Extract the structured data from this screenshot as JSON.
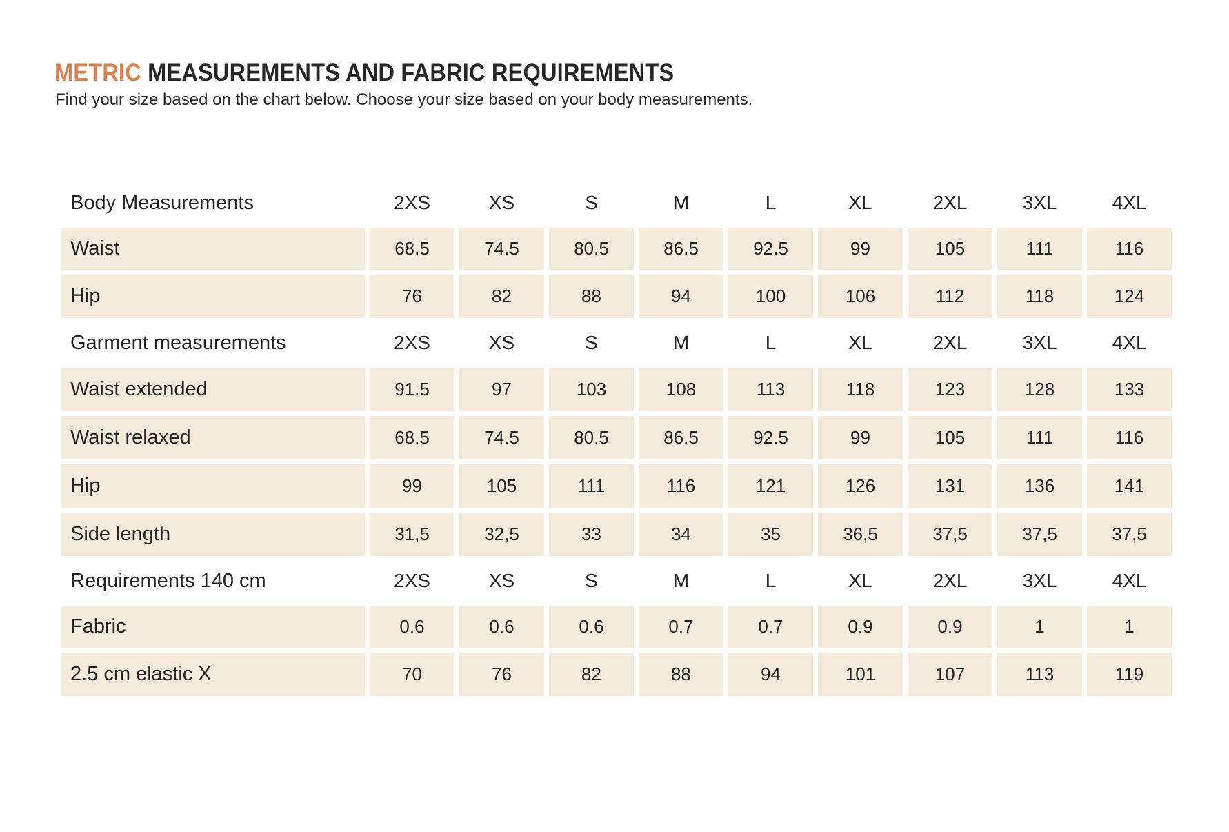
{
  "header": {
    "title_accent": "METRIC",
    "title_rest": "MEASUREMENTS AND FABRIC REQUIREMENTS",
    "subtitle": "Find your size based on the chart below. Choose your size based on your body measurements."
  },
  "sections": [
    {
      "title": "Body Measurements",
      "sizes": [
        "2XS",
        "XS",
        "S",
        "M",
        "L",
        "XL",
        "2XL",
        "3XL",
        "4XL"
      ],
      "rows": [
        {
          "label": "Waist",
          "values": [
            "68.5",
            "74.5",
            "80.5",
            "86.5",
            "92.5",
            "99",
            "105",
            "111",
            "116"
          ]
        },
        {
          "label": "Hip",
          "values": [
            "76",
            "82",
            "88",
            "94",
            "100",
            "106",
            "112",
            "118",
            "124"
          ]
        }
      ]
    },
    {
      "title": "Garment measurements",
      "sizes": [
        "2XS",
        "XS",
        "S",
        "M",
        "L",
        "XL",
        "2XL",
        "3XL",
        "4XL"
      ],
      "rows": [
        {
          "label": "Waist extended",
          "values": [
            "91.5",
            "97",
            "103",
            "108",
            "113",
            "118",
            "123",
            "128",
            "133"
          ]
        },
        {
          "label": "Waist relaxed",
          "values": [
            "68.5",
            "74.5",
            "80.5",
            "86.5",
            "92.5",
            "99",
            "105",
            "111",
            "116"
          ]
        },
        {
          "label": "Hip",
          "values": [
            "99",
            "105",
            "111",
            "116",
            "121",
            "126",
            "131",
            "136",
            "141"
          ]
        },
        {
          "label": "Side length",
          "values": [
            "31,5",
            "32,5",
            "33",
            "34",
            "35",
            "36,5",
            "37,5",
            "37,5",
            "37,5"
          ]
        }
      ]
    },
    {
      "title": "Requirements 140 cm",
      "sizes": [
        "2XS",
        "XS",
        "S",
        "M",
        "L",
        "XL",
        "2XL",
        "3XL",
        "4XL"
      ],
      "rows": [
        {
          "label": "Fabric",
          "values": [
            "0.6",
            "0.6",
            "0.6",
            "0.7",
            "0.7",
            "0.9",
            "0.9",
            "1",
            "1"
          ]
        },
        {
          "label": "2.5 cm elastic X",
          "values": [
            "70",
            "76",
            "82",
            "88",
            "94",
            "101",
            "107",
            "113",
            "119"
          ]
        }
      ]
    }
  ],
  "colors": {
    "accent": "#d9814f",
    "cell_background": "#f3eadb",
    "text": "#222222"
  }
}
